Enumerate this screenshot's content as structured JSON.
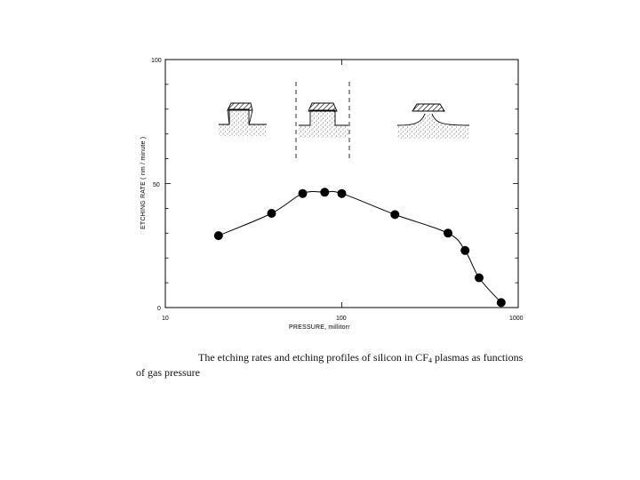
{
  "chart_data": {
    "type": "line",
    "xlabel": "PRESSURE, millitorr",
    "ylabel": "ETCHING RATE ( nm / minute )",
    "xscale": "log",
    "xlim": [
      10,
      1000
    ],
    "ylim": [
      0,
      100
    ],
    "xticks": [
      {
        "value": 10,
        "label": "10"
      },
      {
        "value": 100,
        "label": "100"
      },
      {
        "value": 1000,
        "label": "1000"
      }
    ],
    "yticks": [
      {
        "value": 0,
        "label": "0"
      },
      {
        "value": 50,
        "label": "50"
      },
      {
        "value": 100,
        "label": "100"
      }
    ],
    "grid": false,
    "series": [
      {
        "x": [
          20,
          40,
          60,
          80,
          100,
          200,
          400,
          500,
          600,
          800
        ],
        "y": [
          29,
          38,
          46,
          46.5,
          46,
          37.5,
          30,
          23,
          12,
          2
        ],
        "marker": "filled-circle",
        "color": "#000000"
      }
    ],
    "annotations": {
      "profile_insets": [
        "undercut-profile",
        "vertical-profile",
        "tapered-profile"
      ],
      "dashed_region_x": [
        60,
        110
      ]
    }
  },
  "caption": {
    "prefix": "The etching rates and etching profiles of silicon in CF",
    "subscript": "4",
    "suffix": " plasmas as functions",
    "line2": "of gas pressure"
  }
}
